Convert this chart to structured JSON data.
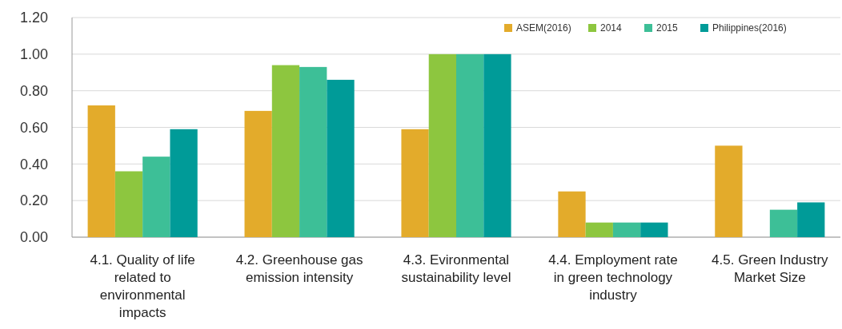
{
  "chart_data": {
    "type": "bar",
    "categories": [
      "4.1. Quality of life related to environmental impacts",
      "4.2. Greenhouse gas emission intensity",
      "4.3. Evironmental sustainability level",
      "4.4. Employment rate in green technology industry",
      "4.5. Green Industry Market Size"
    ],
    "series": [
      {
        "name": "ASEM(2016)",
        "color": "#e3ab2b",
        "values": [
          0.72,
          0.69,
          0.59,
          0.25,
          0.5
        ]
      },
      {
        "name": "2014",
        "color": "#8dc63f",
        "values": [
          0.36,
          0.94,
          1.0,
          0.08,
          null
        ]
      },
      {
        "name": "2015",
        "color": "#3dbf97",
        "values": [
          0.44,
          0.93,
          1.0,
          0.08,
          0.15
        ]
      },
      {
        "name": "Philippines(2016)",
        "color": "#009b98",
        "values": [
          0.59,
          0.86,
          1.0,
          0.08,
          0.19
        ]
      }
    ],
    "ylim": [
      0,
      1.2
    ],
    "yticks": [
      {
        "value": 0,
        "label": "0.00"
      },
      {
        "value": 0.2,
        "label": "0.20"
      },
      {
        "value": 0.4,
        "label": "0.40"
      },
      {
        "value": 0.6,
        "label": "0.60"
      },
      {
        "value": 0.8,
        "label": "0.80"
      },
      {
        "value": 1.0,
        "label": "1.00"
      },
      {
        "value": 1.2,
        "label": "1.20"
      }
    ],
    "grid": "y",
    "legend": "top right"
  }
}
